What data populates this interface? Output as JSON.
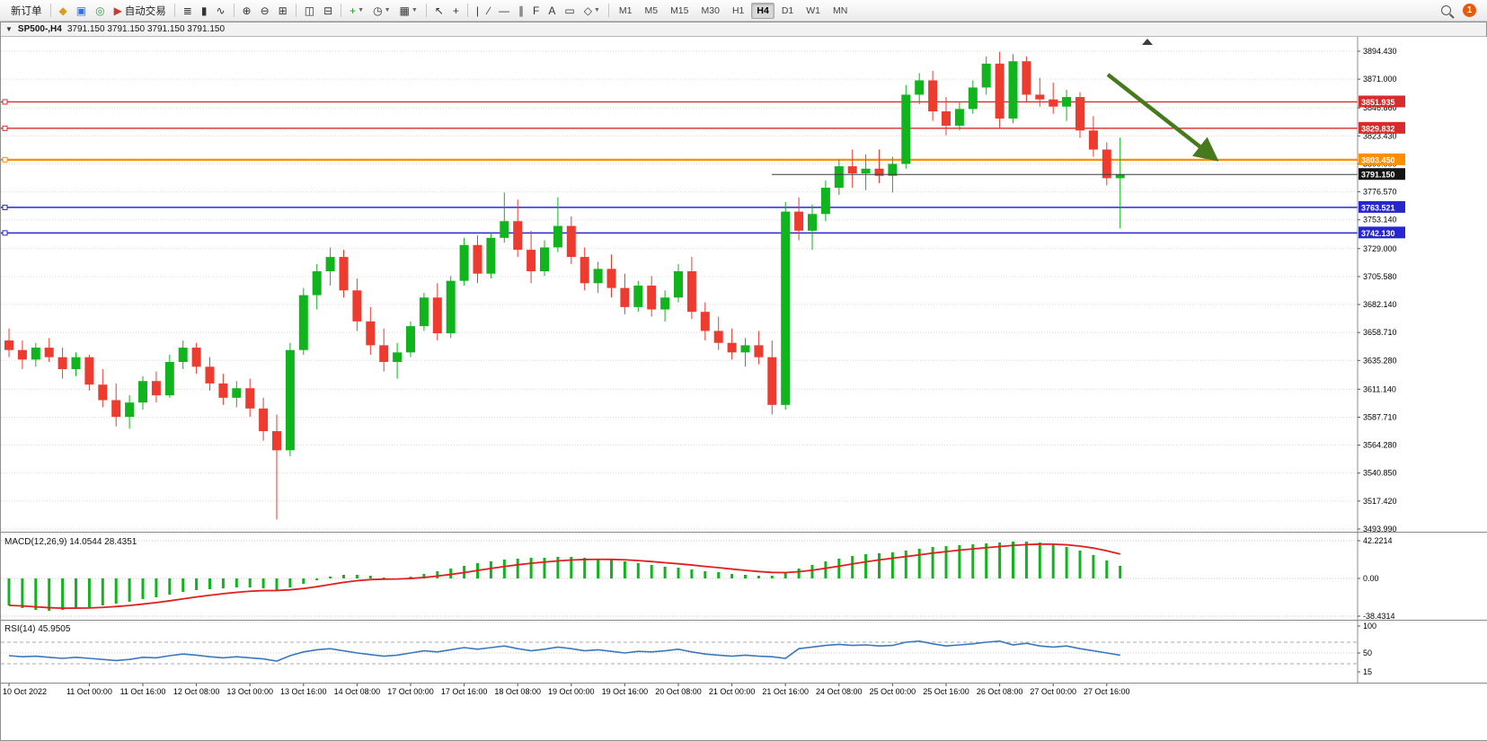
{
  "toolbar": {
    "groups": [
      {
        "items": [
          {
            "name": "new-order-button",
            "label": "新订单"
          }
        ]
      },
      {
        "items": [
          {
            "name": "market-watch-icon",
            "glyph": "◆",
            "color": "#d8a013"
          },
          {
            "name": "terminal-window-icon",
            "glyph": "▣",
            "color": "#3a6fd8"
          },
          {
            "name": "strategy-tester-icon",
            "glyph": "◎",
            "color": "#2f9e44"
          },
          {
            "name": "algo-trading-button",
            "glyph": "▶",
            "color": "#cc3a2e",
            "label": "自动交易"
          }
        ]
      },
      {
        "items": [
          {
            "name": "bar-chart-icon",
            "glyph": "≣"
          },
          {
            "name": "candlestick-chart-icon",
            "glyph": "▮"
          },
          {
            "name": "line-chart-icon",
            "glyph": "∿"
          }
        ]
      },
      {
        "items": [
          {
            "name": "zoom-in-icon",
            "glyph": "⊕"
          },
          {
            "name": "zoom-out-icon",
            "glyph": "⊖"
          },
          {
            "name": "grid-icon",
            "glyph": "⊞"
          }
        ]
      },
      {
        "items": [
          {
            "name": "tile-windows-icon",
            "glyph": "◫"
          },
          {
            "name": "cascade-windows-icon",
            "glyph": "⊟"
          }
        ]
      },
      {
        "items": [
          {
            "name": "indicators-icon",
            "glyph": "+",
            "color": "#1a9e1a",
            "dropdown": true
          },
          {
            "name": "period-clock-icon",
            "glyph": "◷",
            "dropdown": true
          },
          {
            "name": "templates-icon",
            "glyph": "▦",
            "dropdown": true
          }
        ]
      },
      {
        "items": [
          {
            "name": "cursor-icon",
            "glyph": "↖"
          },
          {
            "name": "crosshair-icon",
            "glyph": "+"
          }
        ]
      },
      {
        "items": [
          {
            "name": "vertical-line-icon",
            "glyph": "|"
          },
          {
            "name": "trendline-icon",
            "glyph": "∕"
          },
          {
            "name": "horizontal-line-icon",
            "glyph": "―"
          },
          {
            "name": "channel-icon",
            "glyph": "∥"
          },
          {
            "name": "fibonacci-icon",
            "glyph": "F"
          },
          {
            "name": "text-icon",
            "glyph": "A"
          },
          {
            "name": "rectangle-icon",
            "glyph": "▭"
          },
          {
            "name": "shapes-icon",
            "glyph": "◇",
            "dropdown": true
          }
        ]
      }
    ],
    "timeframes": {
      "items": [
        "M1",
        "M5",
        "M15",
        "M30",
        "H1",
        "H4",
        "D1",
        "W1",
        "MN"
      ],
      "active": "H4"
    },
    "right": {
      "search_icon": "search-icon",
      "notification_count": "1"
    }
  },
  "chart_window": {
    "title": {
      "symbol": "SP500-,H4",
      "quotes": "3791.150 3791.150 3791.150 3791.150"
    }
  },
  "chart_data": {
    "type": "candlestick",
    "symbol": "SP500",
    "timeframe": "H4",
    "colors": {
      "up": "#10b41c",
      "down": "#ee3b30",
      "grid": "#d9d9d9",
      "axis_text": "#000000"
    },
    "candles": [
      [
        3652,
        3662,
        3638,
        3644
      ],
      [
        3644,
        3652,
        3628,
        3636
      ],
      [
        3636,
        3650,
        3630,
        3646
      ],
      [
        3646,
        3654,
        3634,
        3638
      ],
      [
        3638,
        3646,
        3620,
        3628
      ],
      [
        3628,
        3642,
        3622,
        3638
      ],
      [
        3638,
        3640,
        3610,
        3615
      ],
      [
        3615,
        3628,
        3596,
        3602
      ],
      [
        3602,
        3616,
        3580,
        3588
      ],
      [
        3588,
        3606,
        3578,
        3600
      ],
      [
        3600,
        3622,
        3594,
        3618
      ],
      [
        3618,
        3626,
        3600,
        3606
      ],
      [
        3606,
        3640,
        3604,
        3634
      ],
      [
        3634,
        3652,
        3628,
        3646
      ],
      [
        3646,
        3650,
        3624,
        3630
      ],
      [
        3630,
        3638,
        3610,
        3616
      ],
      [
        3616,
        3624,
        3598,
        3604
      ],
      [
        3604,
        3618,
        3596,
        3612
      ],
      [
        3612,
        3620,
        3588,
        3595
      ],
      [
        3595,
        3604,
        3568,
        3576
      ],
      [
        3576,
        3590,
        3502,
        3560
      ],
      [
        3560,
        3650,
        3555,
        3644
      ],
      [
        3644,
        3696,
        3640,
        3690
      ],
      [
        3690,
        3716,
        3678,
        3710
      ],
      [
        3710,
        3730,
        3698,
        3722
      ],
      [
        3722,
        3728,
        3688,
        3694
      ],
      [
        3694,
        3704,
        3660,
        3668
      ],
      [
        3668,
        3680,
        3640,
        3648
      ],
      [
        3648,
        3662,
        3626,
        3634
      ],
      [
        3634,
        3650,
        3620,
        3642
      ],
      [
        3642,
        3668,
        3638,
        3664
      ],
      [
        3664,
        3692,
        3660,
        3688
      ],
      [
        3688,
        3700,
        3652,
        3658
      ],
      [
        3658,
        3706,
        3654,
        3702
      ],
      [
        3702,
        3738,
        3698,
        3732
      ],
      [
        3732,
        3740,
        3700,
        3708
      ],
      [
        3708,
        3742,
        3704,
        3738
      ],
      [
        3738,
        3776,
        3734,
        3752
      ],
      [
        3752,
        3770,
        3722,
        3728
      ],
      [
        3728,
        3744,
        3700,
        3710
      ],
      [
        3710,
        3736,
        3706,
        3730
      ],
      [
        3730,
        3772,
        3726,
        3748
      ],
      [
        3748,
        3756,
        3716,
        3722
      ],
      [
        3722,
        3730,
        3694,
        3700
      ],
      [
        3700,
        3718,
        3692,
        3712
      ],
      [
        3712,
        3724,
        3688,
        3696
      ],
      [
        3696,
        3708,
        3674,
        3680
      ],
      [
        3680,
        3702,
        3676,
        3698
      ],
      [
        3698,
        3706,
        3672,
        3678
      ],
      [
        3678,
        3694,
        3668,
        3688
      ],
      [
        3688,
        3716,
        3684,
        3710
      ],
      [
        3710,
        3722,
        3670,
        3676
      ],
      [
        3676,
        3684,
        3652,
        3660
      ],
      [
        3660,
        3672,
        3644,
        3650
      ],
      [
        3650,
        3662,
        3636,
        3642
      ],
      [
        3642,
        3654,
        3630,
        3648
      ],
      [
        3648,
        3660,
        3632,
        3638
      ],
      [
        3638,
        3652,
        3590,
        3598
      ],
      [
        3598,
        3768,
        3594,
        3760
      ],
      [
        3760,
        3772,
        3736,
        3744
      ],
      [
        3744,
        3766,
        3728,
        3758
      ],
      [
        3758,
        3786,
        3752,
        3780
      ],
      [
        3780,
        3804,
        3774,
        3798
      ],
      [
        3798,
        3812,
        3780,
        3792
      ],
      [
        3792,
        3808,
        3778,
        3796
      ],
      [
        3796,
        3812,
        3784,
        3790
      ],
      [
        3790,
        3806,
        3776,
        3800
      ],
      [
        3800,
        3866,
        3796,
        3858
      ],
      [
        3858,
        3876,
        3850,
        3870
      ],
      [
        3870,
        3878,
        3836,
        3844
      ],
      [
        3844,
        3856,
        3824,
        3832
      ],
      [
        3832,
        3852,
        3828,
        3846
      ],
      [
        3846,
        3870,
        3842,
        3864
      ],
      [
        3864,
        3890,
        3858,
        3884
      ],
      [
        3884,
        3894,
        3830,
        3838
      ],
      [
        3838,
        3892,
        3834,
        3886
      ],
      [
        3886,
        3890,
        3852,
        3858
      ],
      [
        3858,
        3872,
        3848,
        3854
      ],
      [
        3854,
        3868,
        3842,
        3848
      ],
      [
        3848,
        3862,
        3836,
        3856
      ],
      [
        3856,
        3860,
        3822,
        3828
      ],
      [
        3828,
        3840,
        3806,
        3812
      ],
      [
        3812,
        3818,
        3782,
        3788
      ],
      [
        3788,
        3822,
        3746,
        3791.15
      ]
    ],
    "time_labels": [
      {
        "i": 0,
        "t": "10 Oct 2022"
      },
      {
        "i": 6,
        "t": "11 Oct 00:00"
      },
      {
        "i": 10,
        "t": "11 Oct 16:00"
      },
      {
        "i": 14,
        "t": "12 Oct 08:00"
      },
      {
        "i": 18,
        "t": "13 Oct 00:00"
      },
      {
        "i": 22,
        "t": "13 Oct 16:00"
      },
      {
        "i": 26,
        "t": "14 Oct 08:00"
      },
      {
        "i": 30,
        "t": "17 Oct 00:00"
      },
      {
        "i": 34,
        "t": "17 Oct 16:00"
      },
      {
        "i": 38,
        "t": "18 Oct 08:00"
      },
      {
        "i": 42,
        "t": "19 Oct 00:00"
      },
      {
        "i": 46,
        "t": "19 Oct 16:00"
      },
      {
        "i": 50,
        "t": "20 Oct 08:00"
      },
      {
        "i": 54,
        "t": "21 Oct 00:00"
      },
      {
        "i": 58,
        "t": "21 Oct 16:00"
      },
      {
        "i": 62,
        "t": "24 Oct 08:00"
      },
      {
        "i": 66,
        "t": "25 Oct 00:00"
      },
      {
        "i": 70,
        "t": "25 Oct 16:00"
      },
      {
        "i": 74,
        "t": "26 Oct 08:00"
      },
      {
        "i": 78,
        "t": "27 Oct 00:00"
      },
      {
        "i": 82,
        "t": "27 Oct 16:00"
      }
    ],
    "price_axis_ticks": [
      "3894.430",
      "3871.000",
      "3846.860",
      "3823.430",
      "3800.000",
      "3776.570",
      "3753.140",
      "3729.000",
      "3705.580",
      "3682.140",
      "3658.710",
      "3635.280",
      "3611.140",
      "3587.710",
      "3564.280",
      "3540.850",
      "3517.420",
      "3493.990"
    ],
    "hlines": [
      {
        "value": 3851.935,
        "label": "3851.935",
        "color": "#d92b2b",
        "width": 1.3,
        "type": "resistance"
      },
      {
        "value": 3829.832,
        "label": "3829.832",
        "color": "#d92b2b",
        "width": 1.3,
        "type": "resistance"
      },
      {
        "value": 3803.45,
        "label": "3803.450",
        "color": "#ff8f00",
        "width": 2.2,
        "type": "pivot"
      },
      {
        "value": 3763.521,
        "label": "3763.521",
        "color": "#2727d0",
        "width": 1.5,
        "type": "support"
      },
      {
        "value": 3742.13,
        "label": "3742.130",
        "color": "#2727d0",
        "width": 1.5,
        "type": "support"
      }
    ],
    "current_price": {
      "value": 3791.15,
      "label": "3791.150",
      "line_color": "#3c3c3c",
      "badge_color": "#141414"
    },
    "arrow_annotation": {
      "color": "#477a1c",
      "direction": "down-right"
    },
    "macd": {
      "label": "MACD(12,26,9)",
      "values_text": "14.0544 28.4351",
      "axis": [
        "42.2214",
        "0.00",
        "-38.4314"
      ],
      "hist_color": "#10b41c",
      "signal_color": "#e02020",
      "histogram": [
        -30,
        -33,
        -35,
        -36,
        -35,
        -33,
        -32,
        -30,
        -28,
        -26,
        -23,
        -21,
        -18,
        -15,
        -13,
        -12,
        -11,
        -10,
        -10,
        -11,
        -13,
        -10,
        -6,
        -2,
        2,
        4,
        4,
        3,
        1,
        0,
        2,
        5,
        8,
        11,
        14,
        17,
        19,
        21,
        22,
        23,
        23,
        24,
        24,
        23,
        22,
        21,
        19,
        17,
        15,
        13,
        12,
        10,
        8,
        7,
        5,
        4,
        3,
        3,
        6,
        11,
        15,
        19,
        22,
        25,
        27,
        28,
        29,
        31,
        33,
        35,
        36,
        37,
        38,
        39,
        40,
        41,
        41,
        40,
        38,
        35,
        31,
        26,
        20,
        14
      ]
    },
    "rsi": {
      "label": "RSI(14)",
      "value_text": "45.9505",
      "axis": [
        "100",
        "50",
        "15"
      ],
      "line_color": "#3a78be",
      "levels": [
        70,
        30
      ],
      "values": [
        45,
        43,
        44,
        42,
        40,
        42,
        40,
        38,
        36,
        38,
        42,
        41,
        45,
        48,
        46,
        43,
        41,
        43,
        41,
        39,
        35,
        45,
        52,
        56,
        58,
        54,
        50,
        47,
        44,
        46,
        50,
        54,
        52,
        56,
        60,
        57,
        60,
        63,
        58,
        54,
        57,
        61,
        58,
        54,
        56,
        53,
        50,
        53,
        52,
        54,
        57,
        52,
        48,
        46,
        44,
        46,
        44,
        43,
        40,
        58,
        61,
        64,
        66,
        64,
        65,
        63,
        64,
        70,
        72,
        67,
        63,
        65,
        67,
        70,
        72,
        65,
        68,
        63,
        61,
        63,
        58,
        54,
        50,
        46
      ]
    }
  }
}
